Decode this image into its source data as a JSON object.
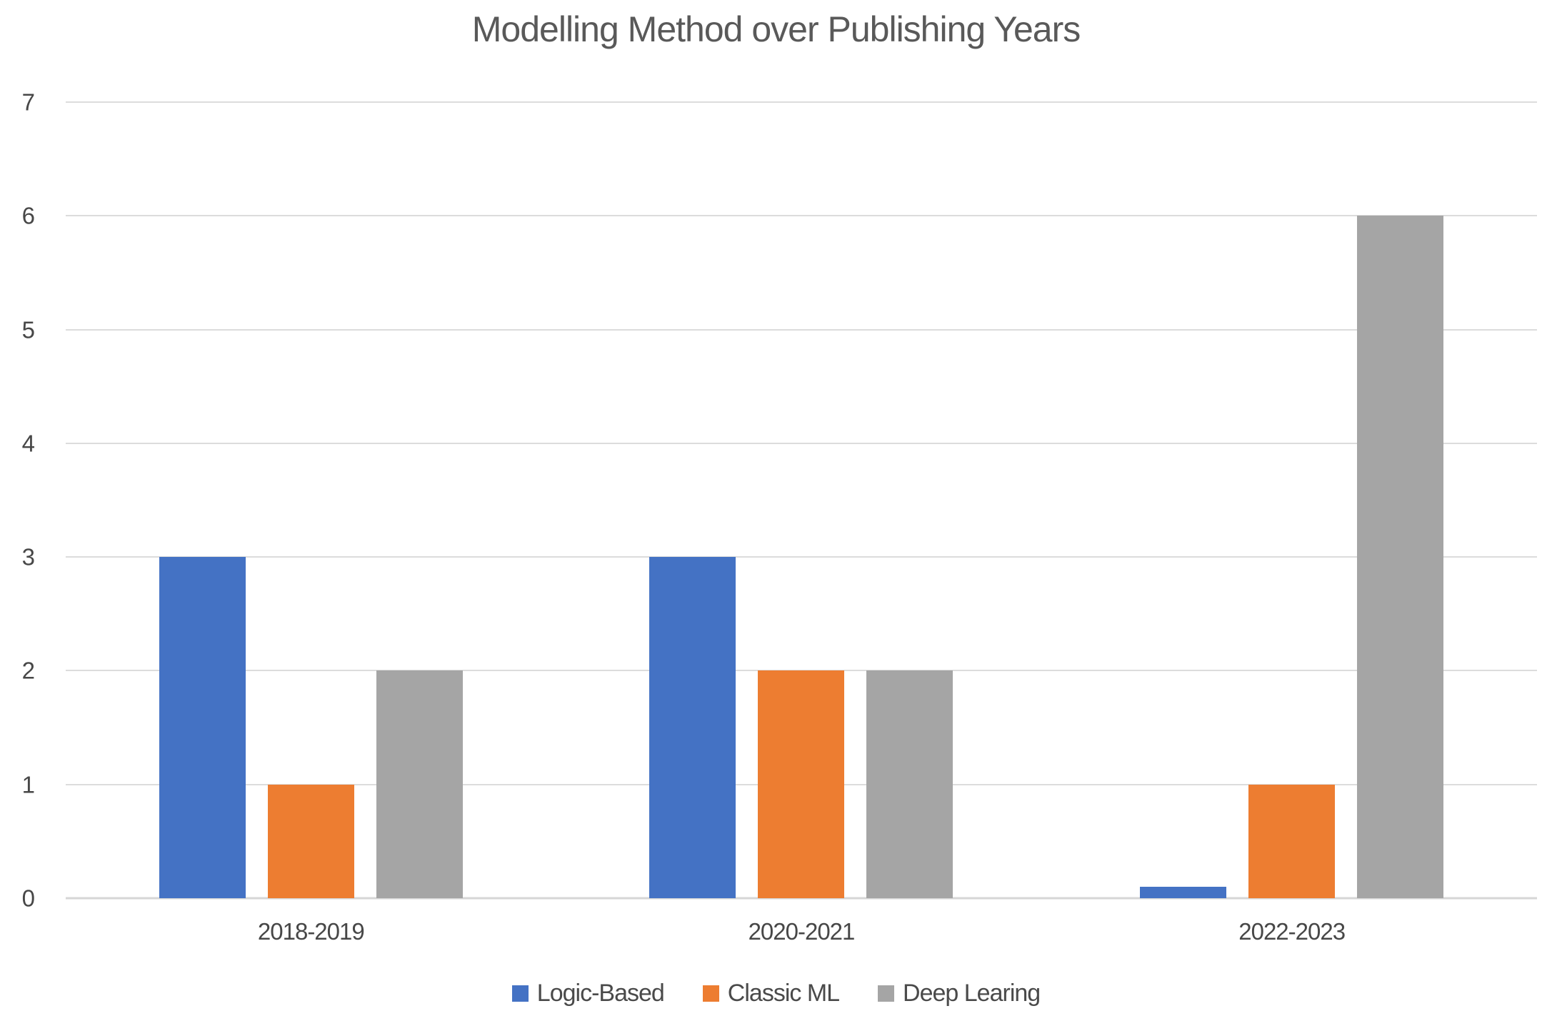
{
  "chart": {
    "title": "Modelling Method over Publishing Years",
    "background_color": "#ffffff",
    "gridline_color": "#dcdcdc",
    "axis_line_color": "#d6d6d6",
    "text_color": "#474747",
    "title_color": "#595959"
  },
  "chart_data": {
    "type": "bar",
    "title": "Modelling Method over Publishing Years",
    "categories": [
      "2018-2019",
      "2020-2021",
      "2022-2023"
    ],
    "series": [
      {
        "name": "Logic-Based",
        "color": "#4472C4",
        "values": [
          3,
          3,
          0.1
        ]
      },
      {
        "name": "Classic ML",
        "color": "#ED7D31",
        "values": [
          1,
          2,
          1
        ]
      },
      {
        "name": "Deep Learing",
        "color": "#A5A5A5",
        "values": [
          2,
          2,
          6
        ]
      }
    ],
    "xlabel": "",
    "ylabel": "",
    "ylim": [
      0,
      7
    ],
    "yticks": [
      0,
      1,
      2,
      3,
      4,
      5,
      6,
      7
    ],
    "grid": true,
    "legend_position": "bottom-center"
  }
}
